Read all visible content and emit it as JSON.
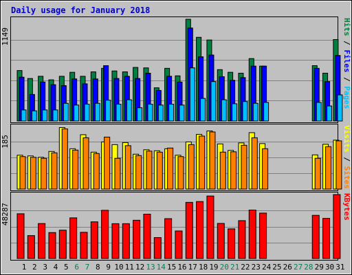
{
  "chart_data": {
    "type": "bar",
    "title": "Daily usage for January 2018",
    "x": [
      "1",
      "2",
      "3",
      "4",
      "5",
      "6",
      "7",
      "8",
      "9",
      "10",
      "11",
      "12",
      "13",
      "14",
      "15",
      "16",
      "17",
      "18",
      "19",
      "20",
      "21",
      "22",
      "23",
      "24",
      "25",
      "26",
      "27",
      "28",
      "29",
      "30",
      "31"
    ],
    "weekend_days": [
      "6",
      "7",
      "13",
      "14",
      "20",
      "21",
      "27",
      "28"
    ],
    "panels": [
      {
        "name": "hits-files-pages",
        "ymax": 1149,
        "ymax_label": "1149",
        "legend": [
          {
            "text": "Pages",
            "color": "#00c0ff"
          },
          {
            "text": " / ",
            "color": "#000000"
          },
          {
            "text": "Files",
            "color": "#0000ff"
          },
          {
            "text": " / ",
            "color": "#000000"
          },
          {
            "text": "Hits",
            "color": "#008040"
          }
        ],
        "series": [
          {
            "name": "Hits",
            "color": "#008040",
            "values": [
              570,
              480,
              505,
              465,
              505,
              550,
              505,
              555,
              595,
              565,
              555,
              605,
              600,
              375,
              595,
              510,
              1149,
              945,
              915,
              580,
              550,
              540,
              705,
              620,
              null,
              null,
              null,
              null,
              625,
              540,
              920
            ]
          },
          {
            "name": "Files",
            "color": "#0000ff",
            "values": [
              495,
              300,
              440,
              410,
              400,
              475,
              420,
              475,
              625,
              480,
              505,
              480,
              540,
              345,
              505,
              440,
              1050,
              725,
              745,
              500,
              460,
              490,
              620,
              620,
              null,
              null,
              null,
              null,
              595,
              445,
              740
            ]
          },
          {
            "name": "Pages",
            "color": "#00c0ff",
            "values": [
              125,
              115,
              125,
              125,
              200,
              180,
              190,
              200,
              235,
              190,
              240,
              150,
              190,
              180,
              190,
              180,
              600,
              255,
              445,
              240,
              195,
              220,
              200,
              210,
              null,
              null,
              null,
              null,
              210,
              170,
              295
            ]
          }
        ]
      },
      {
        "name": "visits-sites",
        "ymax": 185,
        "ymax_label": "185",
        "legend": [
          {
            "text": "Sites",
            "color": "#ff8000"
          },
          {
            "text": " / ",
            "color": "#000000"
          },
          {
            "text": "Visits",
            "color": "#ffff00"
          }
        ],
        "series": [
          {
            "name": "Visits",
            "color": "#ffff00",
            "values": [
              99,
              97,
              93,
              110,
              180,
              118,
              159,
              108,
              138,
              130,
              136,
              102,
              115,
              112,
              118,
              99,
              138,
              160,
              170,
              132,
              113,
              135,
              165,
              133,
              null,
              null,
              null,
              null,
              100,
              131,
              143
            ]
          },
          {
            "name": "Sites",
            "color": "#ff8000",
            "values": [
              95,
              93,
              90,
              106,
              176,
              114,
              150,
              104,
              152,
              90,
              127,
              98,
              111,
              108,
              120,
              95,
              130,
              155,
              167,
              108,
              109,
              128,
              150,
              118,
              null,
              null,
              null,
              null,
              90,
              124,
              141
            ]
          }
        ]
      },
      {
        "name": "kbytes",
        "ymax": 48287,
        "ymax_label": "48287",
        "legend": [
          {
            "text": "KBytes",
            "color": "#ff0000"
          }
        ],
        "series": [
          {
            "name": "KBytes",
            "color": "#ff0000",
            "values": [
              33800,
              17300,
              26400,
              19600,
              21400,
              30700,
              19800,
              27700,
              36400,
              26300,
              26300,
              28900,
              33500,
              15800,
              30100,
              20800,
              42400,
              43000,
              47200,
              26500,
              22400,
              28600,
              36600,
              34300,
              null,
              null,
              null,
              null,
              32600,
              30300,
              48287
            ]
          }
        ]
      }
    ],
    "grid": true
  }
}
